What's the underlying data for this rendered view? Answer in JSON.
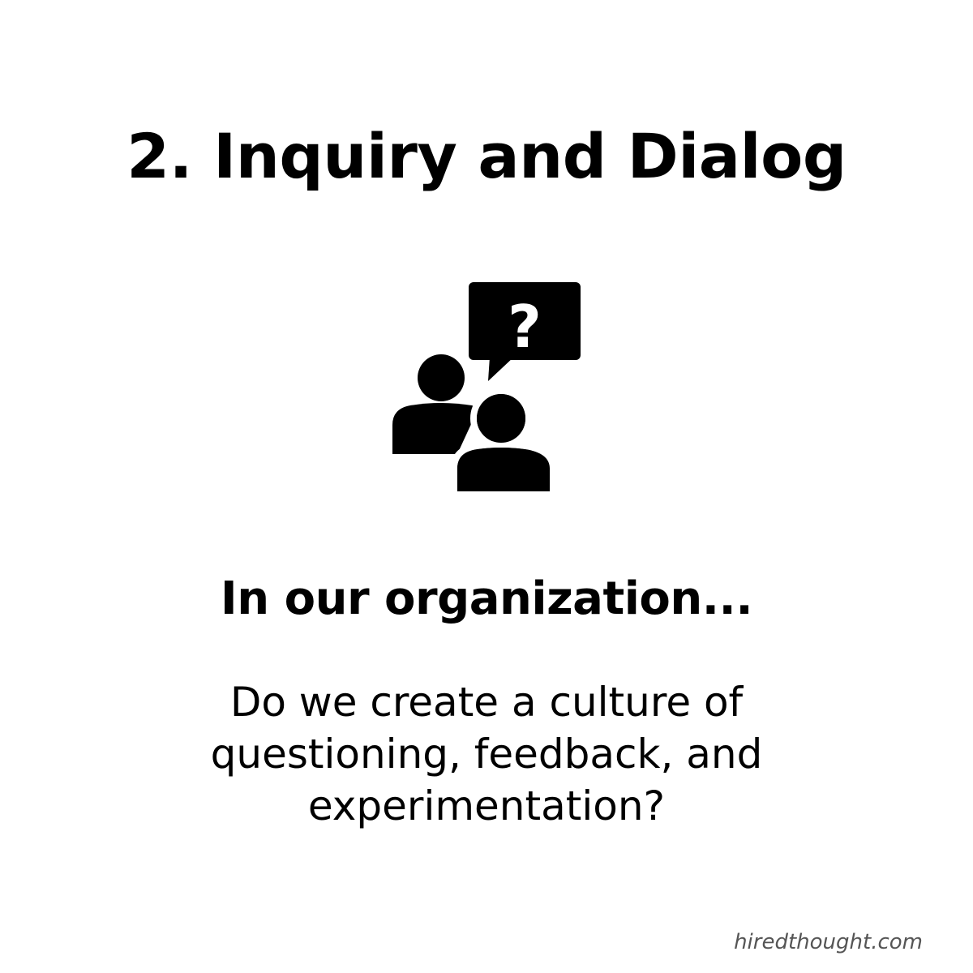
{
  "card": {
    "title": "2. Inquiry and Dialog",
    "subheading": "In our organization...",
    "question_lines": [
      "Do we create a culture of",
      "questioning, feedback, and",
      "experimentation?"
    ],
    "icon": {
      "name": "people-dialog-question-icon",
      "glyph": "?"
    },
    "watermark": "hiredthought.com"
  },
  "colors": {
    "background": "#ffffff",
    "text": "#000000",
    "watermark": "#555555"
  }
}
